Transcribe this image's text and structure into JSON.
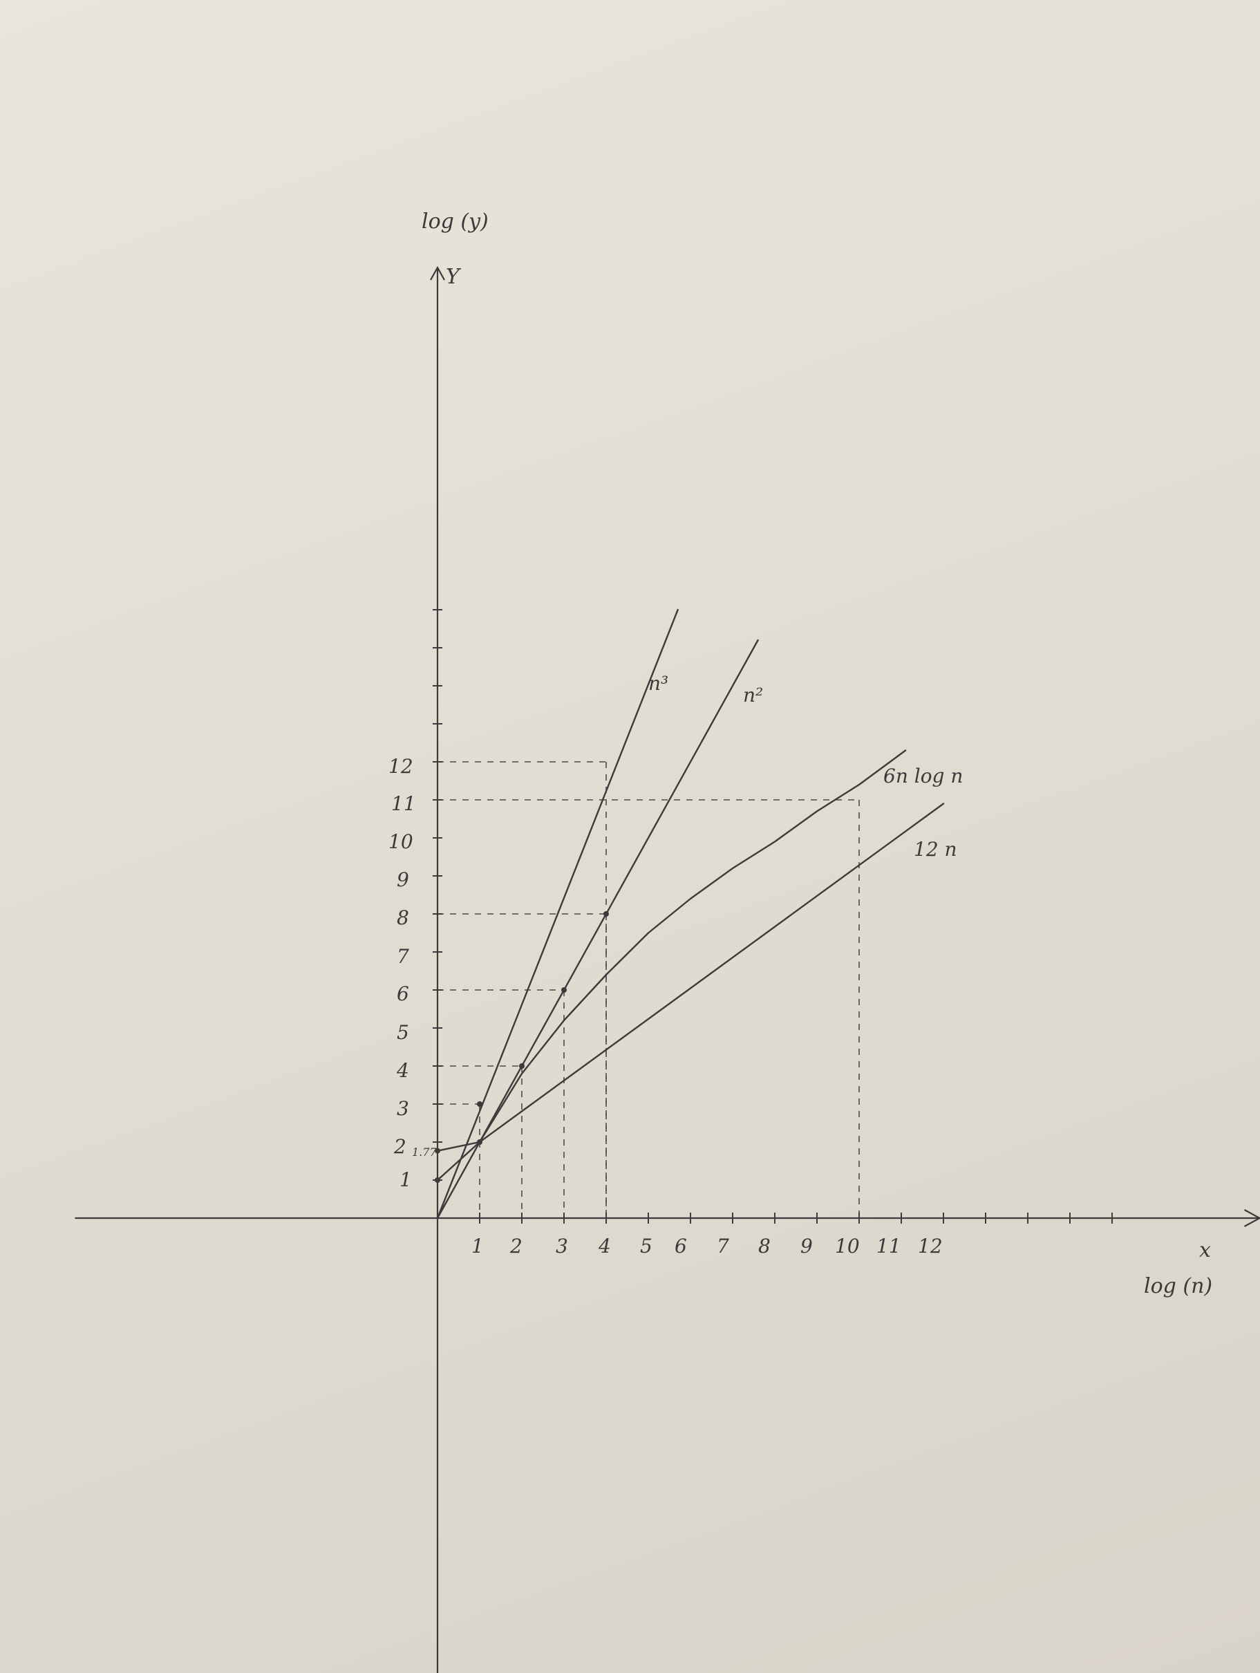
{
  "chart_data": {
    "type": "line",
    "title": "",
    "xlabel": "log (n)",
    "ylabel": "log (y)",
    "x_axis_letter": "x",
    "y_axis_letter": "Y",
    "x_tick_labels": [
      "1",
      "2",
      "3",
      "4",
      "5",
      "6",
      "7",
      "8",
      "9",
      "10",
      "11",
      "12"
    ],
    "y_tick_labels": [
      "1",
      "2",
      "3",
      "4",
      "5",
      "6",
      "7",
      "8",
      "9",
      "10",
      "11",
      "12"
    ],
    "y_annotation": "1.77",
    "xlim": [
      -8.6,
      19.5
    ],
    "ylim": [
      -13,
      25
    ],
    "grid": false,
    "series": [
      {
        "name": "n³",
        "points": [
          [
            0,
            0
          ],
          [
            5.7,
            16.0
          ]
        ]
      },
      {
        "name": "n²",
        "points": [
          [
            0,
            0
          ],
          [
            7.6,
            15.2
          ]
        ]
      },
      {
        "name": "6n log n",
        "points": [
          [
            0,
            1.77
          ],
          [
            1,
            2.0
          ],
          [
            2,
            3.8
          ],
          [
            3,
            5.2
          ],
          [
            4,
            6.4
          ],
          [
            5,
            7.5
          ],
          [
            6,
            8.4
          ],
          [
            7,
            9.2
          ],
          [
            8,
            9.9
          ],
          [
            9,
            10.7
          ],
          [
            10,
            11.4
          ],
          [
            11.1,
            12.3
          ]
        ]
      },
      {
        "name": "12 n",
        "points": [
          [
            0,
            1.0
          ],
          [
            1,
            2.0
          ],
          [
            12,
            10.9
          ]
        ]
      }
    ],
    "guides": [
      {
        "x": 1,
        "y": 3
      },
      {
        "x": 2,
        "y": 4
      },
      {
        "x": 3,
        "y": 6
      },
      {
        "x": 4,
        "y": 8
      },
      {
        "x": 4,
        "y": 12
      },
      {
        "x": 10,
        "y": 11
      }
    ],
    "marked_points": [
      [
        1,
        3
      ],
      [
        2,
        4
      ],
      [
        3,
        6
      ],
      [
        4,
        8
      ],
      [
        1,
        2
      ],
      [
        0,
        1.77
      ],
      [
        0,
        1.0
      ]
    ]
  }
}
